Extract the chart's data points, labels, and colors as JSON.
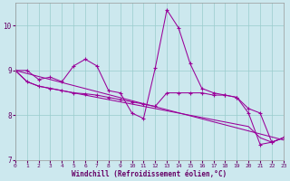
{
  "bg_color": "#cce8ee",
  "line_color": "#990099",
  "grid_color": "#99cccc",
  "x_values": [
    0,
    1,
    2,
    3,
    4,
    5,
    6,
    7,
    8,
    9,
    10,
    11,
    12,
    13,
    14,
    15,
    16,
    17,
    18,
    19,
    20,
    21,
    22,
    23
  ],
  "series1": [
    9.0,
    9.0,
    8.8,
    8.85,
    8.75,
    9.1,
    9.25,
    9.1,
    8.55,
    8.5,
    8.05,
    7.93,
    9.05,
    10.35,
    9.95,
    9.15,
    8.6,
    8.5,
    8.45,
    8.4,
    8.05,
    7.35,
    7.4,
    7.5
  ],
  "series2": [
    9.0,
    8.75,
    8.65,
    8.6,
    8.55,
    8.5,
    8.48,
    8.45,
    8.4,
    8.35,
    8.3,
    8.25,
    8.2,
    8.5,
    8.5,
    8.5,
    8.5,
    8.45,
    8.45,
    8.4,
    8.15,
    8.05,
    7.4,
    7.5
  ],
  "series3": [
    9.0,
    8.75,
    8.65,
    8.6,
    8.55,
    8.5,
    8.45,
    8.4,
    8.35,
    8.3,
    8.25,
    8.2,
    8.15,
    8.1,
    8.05,
    8.0,
    7.95,
    7.9,
    7.85,
    7.8,
    7.75,
    7.5,
    7.4,
    7.5
  ],
  "series4_x": [
    0,
    23
  ],
  "series4_y": [
    9.0,
    7.45
  ],
  "xlabel": "Windchill (Refroidissement éolien,°C)",
  "xlim": [
    0,
    23
  ],
  "ylim": [
    7,
    10.5
  ],
  "yticks": [
    7,
    8,
    9,
    10
  ],
  "xticks": [
    0,
    1,
    2,
    3,
    4,
    5,
    6,
    7,
    8,
    9,
    10,
    11,
    12,
    13,
    14,
    15,
    16,
    17,
    18,
    19,
    20,
    21,
    22,
    23
  ]
}
